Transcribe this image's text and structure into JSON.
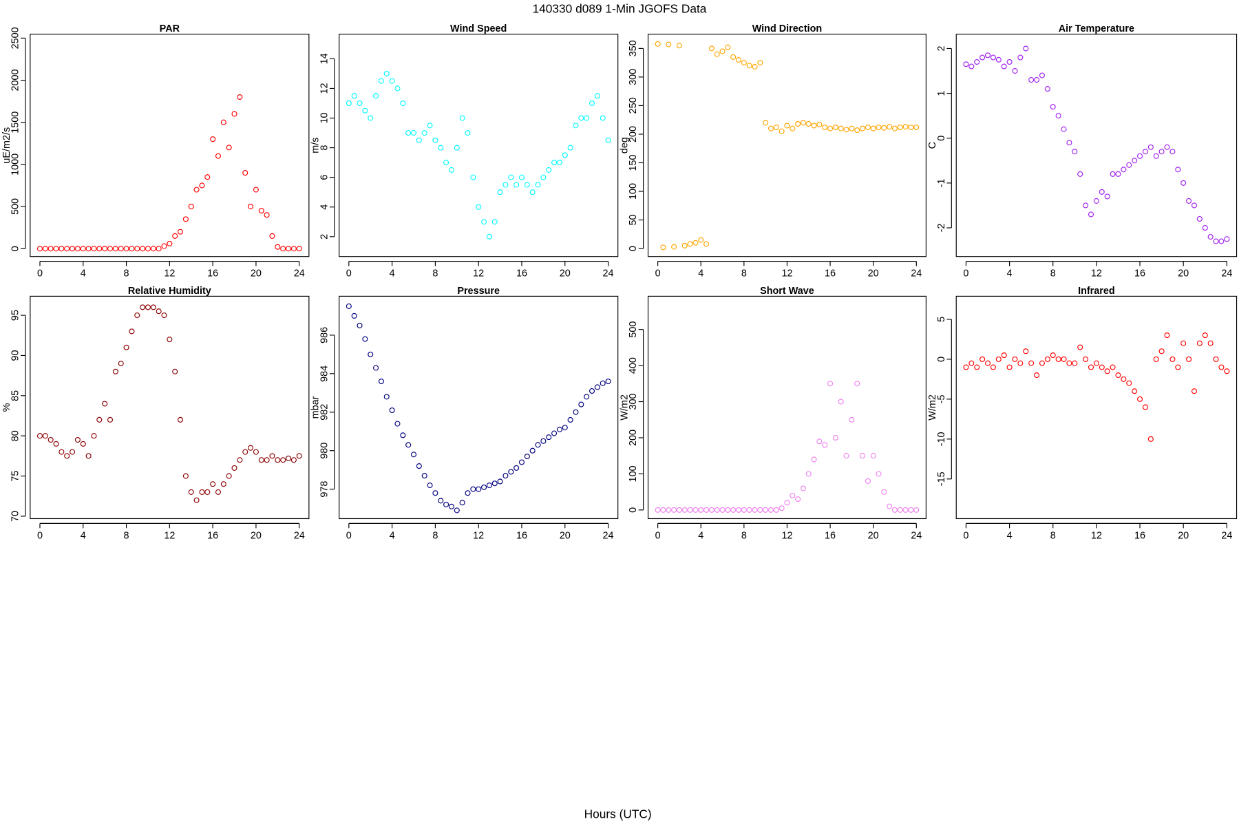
{
  "page": {
    "title": "140330   d089   1-Min  JGOFS Data",
    "xlabel": "Hours (UTC)"
  },
  "chart_data": [
    {
      "type": "scatter",
      "title": "PAR",
      "ylabel": "uE/m2/s",
      "color": "#ff0000",
      "x": [
        0,
        0.5,
        1,
        1.5,
        2,
        2.5,
        3,
        3.5,
        4,
        4.5,
        5,
        5.5,
        6,
        6.5,
        7,
        7.5,
        8,
        8.5,
        9,
        9.5,
        10,
        10.5,
        11,
        11.5,
        12,
        12.5,
        13,
        13.5,
        14,
        14.5,
        15,
        15.5,
        16,
        16.5,
        17,
        17.5,
        18,
        18.5,
        19,
        19.5,
        20,
        20.5,
        21,
        21.5,
        22,
        22.5,
        23,
        23.5,
        24
      ],
      "values": [
        0,
        0,
        0,
        0,
        0,
        0,
        0,
        0,
        0,
        0,
        0,
        0,
        0,
        0,
        0,
        0,
        0,
        0,
        0,
        0,
        0,
        0,
        0,
        30,
        60,
        150,
        200,
        350,
        500,
        700,
        750,
        850,
        1300,
        1100,
        1500,
        1200,
        1600,
        1800,
        900,
        500,
        700,
        450,
        400,
        150,
        20,
        0,
        0,
        0,
        0
      ],
      "xlim": [
        -0.9,
        24.9
      ],
      "xticks": [
        0,
        4,
        8,
        12,
        16,
        20,
        24
      ],
      "ylim": [
        -94,
        2547
      ],
      "yticks": [
        0,
        500,
        1000,
        1500,
        2000,
        2500
      ]
    },
    {
      "type": "scatter",
      "title": "Wind Speed",
      "ylabel": "m/s",
      "color": "#00ffff",
      "x": [
        0,
        0.5,
        1,
        1.5,
        2,
        2.5,
        3,
        3.5,
        4,
        4.5,
        5,
        5.5,
        6,
        6.5,
        7,
        7.5,
        8,
        8.5,
        9,
        9.5,
        10,
        10.5,
        11,
        11.5,
        12,
        12.5,
        13,
        13.5,
        14,
        14.5,
        15,
        15.5,
        16,
        16.5,
        17,
        17.5,
        18,
        18.5,
        19,
        19.5,
        20,
        20.5,
        21,
        21.5,
        22,
        22.5,
        23,
        23.5,
        24
      ],
      "values": [
        11,
        11.5,
        11,
        10.5,
        10,
        11.5,
        12.5,
        13,
        12.5,
        12,
        11,
        9,
        9,
        8.5,
        9,
        9.5,
        8.5,
        8,
        7,
        6.5,
        8,
        10,
        9,
        6,
        4,
        3,
        2,
        3,
        5,
        5.5,
        6,
        5.5,
        6,
        5.5,
        5,
        5.5,
        6,
        6.5,
        7,
        7,
        7.5,
        8,
        9.5,
        10,
        10,
        11,
        11.5,
        10,
        8.5
      ],
      "xlim": [
        -0.9,
        24.9
      ],
      "xticks": [
        0,
        4,
        8,
        12,
        16,
        20,
        24
      ],
      "ylim": [
        0.66,
        15.66
      ],
      "yticks": [
        2,
        4,
        6,
        8,
        10,
        12,
        14
      ]
    },
    {
      "type": "scatter",
      "title": "Wind Direction",
      "ylabel": "deg",
      "color": "#ffa500",
      "x": [
        0,
        0.5,
        1,
        1.5,
        2,
        2.5,
        3,
        3.5,
        4,
        4.5,
        5,
        5.5,
        6,
        6.5,
        7,
        7.5,
        8,
        8.5,
        9,
        9.5,
        10,
        10.5,
        11,
        11.5,
        12,
        12.5,
        13,
        13.5,
        14,
        14.5,
        15,
        15.5,
        16,
        16.5,
        17,
        17.5,
        18,
        18.5,
        19,
        19.5,
        20,
        20.5,
        21,
        21.5,
        22,
        22.5,
        23,
        23.5,
        24
      ],
      "values": [
        358,
        2,
        357,
        3,
        355,
        5,
        8,
        10,
        15,
        8,
        350,
        340,
        345,
        352,
        335,
        330,
        325,
        320,
        318,
        325,
        220,
        210,
        212,
        205,
        215,
        210,
        218,
        220,
        218,
        215,
        217,
        212,
        210,
        212,
        210,
        208,
        210,
        207,
        210,
        212,
        210,
        212,
        211,
        213,
        210,
        212,
        213,
        212,
        212
      ],
      "xlim": [
        -0.9,
        24.9
      ],
      "xticks": [
        0,
        4,
        8,
        12,
        16,
        20,
        24
      ],
      "ylim": [
        -14,
        375
      ],
      "yticks": [
        0,
        50,
        100,
        150,
        200,
        250,
        300,
        350
      ]
    },
    {
      "type": "scatter",
      "title": "Air Temperature",
      "ylabel": "C",
      "color": "#a020f0",
      "x": [
        0,
        0.5,
        1,
        1.5,
        2,
        2.5,
        3,
        3.5,
        4,
        4.5,
        5,
        5.5,
        6,
        6.5,
        7,
        7.5,
        8,
        8.5,
        9,
        9.5,
        10,
        10.5,
        11,
        11.5,
        12,
        12.5,
        13,
        13.5,
        14,
        14.5,
        15,
        15.5,
        16,
        16.5,
        17,
        17.5,
        18,
        18.5,
        19,
        19.5,
        20,
        20.5,
        21,
        21.5,
        22,
        22.5,
        23,
        23.5,
        24
      ],
      "values": [
        1.65,
        1.6,
        1.7,
        1.8,
        1.85,
        1.8,
        1.75,
        1.6,
        1.7,
        1.5,
        1.8,
        2,
        1.3,
        1.3,
        1.4,
        1.1,
        0.7,
        0.5,
        0.2,
        -0.1,
        -0.3,
        -0.8,
        -1.5,
        -1.7,
        -1.4,
        -1.2,
        -1.3,
        -0.8,
        -0.8,
        -0.7,
        -0.6,
        -0.5,
        -0.4,
        -0.3,
        -0.2,
        -0.4,
        -0.3,
        -0.2,
        -0.3,
        -0.7,
        -1,
        -1.4,
        -1.5,
        -1.8,
        -2,
        -2.2,
        -2.3,
        -2.3,
        -2.25
      ],
      "xlim": [
        -0.9,
        24.9
      ],
      "xticks": [
        0,
        4,
        8,
        12,
        16,
        20,
        24
      ],
      "ylim": [
        -2.64,
        2.32
      ],
      "yticks": [
        -2,
        -1,
        0,
        1,
        2
      ]
    },
    {
      "type": "scatter",
      "title": "Relative Humidity",
      "ylabel": "%",
      "color": "#8b0000",
      "x": [
        0,
        0.5,
        1,
        1.5,
        2,
        2.5,
        3,
        3.5,
        4,
        4.5,
        5,
        5.5,
        6,
        6.5,
        7,
        7.5,
        8,
        8.5,
        9,
        9.5,
        10,
        10.5,
        11,
        11.5,
        12,
        12.5,
        13,
        13.5,
        14,
        14.5,
        15,
        15.5,
        16,
        16.5,
        17,
        17.5,
        18,
        18.5,
        19,
        19.5,
        20,
        20.5,
        21,
        21.5,
        22,
        22.5,
        23,
        23.5,
        24
      ],
      "values": [
        80,
        80,
        79.5,
        79,
        78,
        77.5,
        78,
        79.5,
        79,
        77.5,
        80,
        82,
        84,
        82,
        88,
        89,
        91,
        93,
        95,
        96,
        96,
        96,
        95.5,
        95,
        92,
        88,
        82,
        75,
        73,
        72,
        73,
        73,
        74,
        73,
        74,
        75,
        76,
        77,
        78,
        78.5,
        78,
        77,
        77,
        77.5,
        77,
        77,
        77.2,
        77,
        77.5
      ],
      "xlim": [
        -0.9,
        24.9
      ],
      "xticks": [
        0,
        4,
        8,
        12,
        16,
        20,
        24
      ],
      "ylim": [
        69.7,
        97.37
      ],
      "yticks": [
        70,
        75,
        80,
        85,
        90,
        95
      ]
    },
    {
      "type": "scatter",
      "title": "Pressure",
      "ylabel": "mbar",
      "color": "#000080",
      "x": [
        0,
        0.5,
        1,
        1.5,
        2,
        2.5,
        3,
        3.5,
        4,
        4.5,
        5,
        5.5,
        6,
        6.5,
        7,
        7.5,
        8,
        8.5,
        9,
        9.5,
        10,
        10.5,
        11,
        11.5,
        12,
        12.5,
        13,
        13.5,
        14,
        14.5,
        15,
        15.5,
        16,
        16.5,
        17,
        17.5,
        18,
        18.5,
        19,
        19.5,
        20,
        20.5,
        21,
        21.5,
        22,
        22.5,
        23,
        23.5,
        24
      ],
      "values": [
        987.5,
        987,
        986.5,
        985.8,
        985,
        984.3,
        983.6,
        982.8,
        982.1,
        981.4,
        980.8,
        980.3,
        979.8,
        979.2,
        978.7,
        978.2,
        977.8,
        977.4,
        977.2,
        977.1,
        976.9,
        977.3,
        977.8,
        978,
        978,
        978.1,
        978.2,
        978.3,
        978.4,
        978.7,
        978.9,
        979.1,
        979.4,
        979.7,
        980,
        980.3,
        980.5,
        980.7,
        980.9,
        981.1,
        981.2,
        981.6,
        982,
        982.4,
        982.8,
        983.1,
        983.3,
        983.5,
        983.6
      ],
      "xlim": [
        -0.9,
        24.9
      ],
      "xticks": [
        0,
        4,
        8,
        12,
        16,
        20,
        24
      ],
      "ylim": [
        976.47,
        988.02
      ],
      "yticks": [
        978,
        980,
        982,
        984,
        986
      ]
    },
    {
      "type": "scatter",
      "title": "Short Wave",
      "ylabel": "W/m2",
      "color": "#ee82ee",
      "x": [
        0,
        0.5,
        1,
        1.5,
        2,
        2.5,
        3,
        3.5,
        4,
        4.5,
        5,
        5.5,
        6,
        6.5,
        7,
        7.5,
        8,
        8.5,
        9,
        9.5,
        10,
        10.5,
        11,
        11.5,
        12,
        12.5,
        13,
        13.5,
        14,
        14.5,
        15,
        15.5,
        16,
        16.5,
        17,
        17.5,
        18,
        18.5,
        19,
        19.5,
        20,
        20.5,
        21,
        21.5,
        22,
        22.5,
        23,
        23.5,
        24
      ],
      "values": [
        0,
        0,
        0,
        0,
        0,
        0,
        0,
        0,
        0,
        0,
        0,
        0,
        0,
        0,
        0,
        0,
        0,
        0,
        0,
        0,
        0,
        0,
        0,
        5,
        20,
        40,
        30,
        60,
        100,
        140,
        190,
        180,
        350,
        200,
        300,
        150,
        250,
        350,
        150,
        80,
        150,
        100,
        50,
        10,
        0,
        0,
        0,
        0,
        0
      ],
      "xlim": [
        -0.9,
        24.9
      ],
      "xticks": [
        0,
        4,
        8,
        12,
        16,
        20,
        24
      ],
      "ylim": [
        -24,
        592
      ],
      "yticks": [
        0,
        100,
        200,
        300,
        400,
        500
      ]
    },
    {
      "type": "scatter",
      "title": "Infrared",
      "ylabel": "W/m2",
      "color": "#ff0000",
      "x": [
        0,
        0.5,
        1,
        1.5,
        2,
        2.5,
        3,
        3.5,
        4,
        4.5,
        5,
        5.5,
        6,
        6.5,
        7,
        7.5,
        8,
        8.5,
        9,
        9.5,
        10,
        10.5,
        11,
        11.5,
        12,
        12.5,
        13,
        13.5,
        14,
        14.5,
        15,
        15.5,
        16,
        16.5,
        17,
        17.5,
        18,
        18.5,
        19,
        19.5,
        20,
        20.5,
        21,
        21.5,
        22,
        22.5,
        23,
        23.5,
        24
      ],
      "values": [
        -1,
        -0.5,
        -1,
        0,
        -0.5,
        -1,
        0,
        0.5,
        -1,
        0,
        -0.5,
        1,
        -0.5,
        -2,
        -0.5,
        0,
        0.5,
        0,
        0,
        -0.5,
        -0.5,
        1.5,
        0,
        -1,
        -0.5,
        -1,
        -1.5,
        -1,
        -2,
        -2.5,
        -3,
        -4,
        -5,
        -6,
        -10,
        0,
        1,
        3,
        0,
        -1,
        2,
        0,
        -4,
        2,
        3,
        2,
        0,
        -1,
        -1.5
      ],
      "xlim": [
        -0.9,
        24.9
      ],
      "xticks": [
        0,
        4,
        8,
        12,
        16,
        20,
        24
      ],
      "ylim": [
        -19.97,
        7.89
      ],
      "yticks": [
        -15,
        -10,
        -5,
        0,
        5
      ]
    }
  ]
}
